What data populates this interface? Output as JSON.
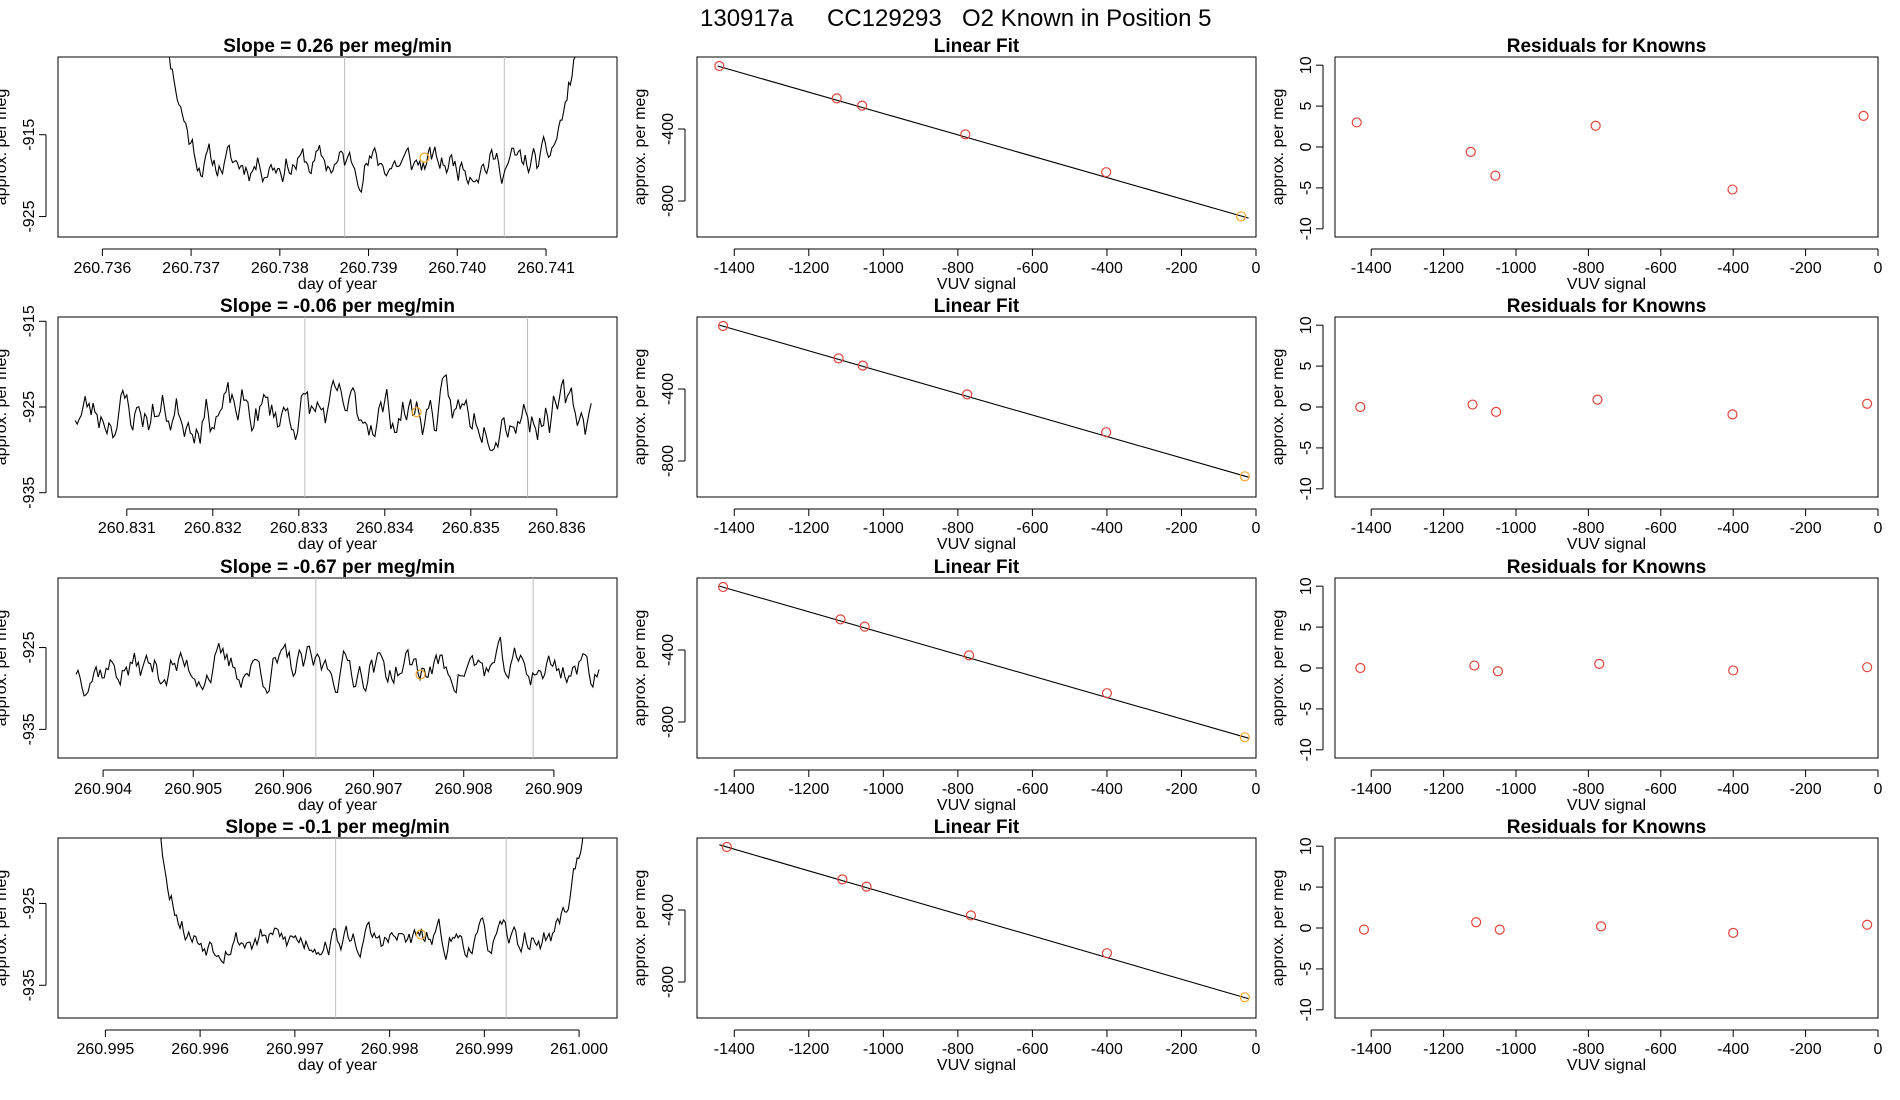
{
  "title_parts": [
    "130917a",
    "CC129293",
    "O2 Known in Position  5"
  ],
  "colors": {
    "point": "#e0453a",
    "highlight": "#f4a62a",
    "line": "#000000",
    "marker_lines": "#bdbdbd"
  },
  "chart_data": [
    {
      "type": "line",
      "panel": "timeseries",
      "row": 0,
      "title": "Slope =  0.26  per meg/min",
      "xlabel": "day of year",
      "ylabel": "approx. per meg",
      "xlim": [
        260.7355,
        260.7418
      ],
      "ylim": [
        -927.5,
        -905.5
      ],
      "xticks": [
        "260.736",
        "260.737",
        "260.738",
        "260.739",
        "260.740",
        "260.741"
      ],
      "yticks": [
        "-915",
        "-925"
      ],
      "vlines": [
        260.73873,
        260.74053
      ],
      "segment": [
        260.7366,
        260.7415
      ],
      "pattern": "ushape",
      "base": -918.5,
      "noise": 2.2,
      "seed": 11,
      "highlight": {
        "x": 260.73963,
        "y": -917.8
      }
    },
    {
      "type": "scatter",
      "panel": "linear_fit",
      "row": 0,
      "title": "Linear Fit",
      "xlabel": "VUV signal",
      "ylabel": "approx. per meg",
      "xlim": [
        -1500,
        0
      ],
      "ylim": [
        -1000,
        0
      ],
      "xticks": [
        -1400,
        -1200,
        -1000,
        -800,
        -600,
        -400,
        -200,
        0
      ],
      "yticks": [
        -400,
        -800
      ],
      "points": [
        [
          -1440,
          -50
        ],
        [
          -1125,
          -230
        ],
        [
          -1057,
          -270
        ],
        [
          -780,
          -430
        ],
        [
          -402,
          -640
        ],
        [
          -40,
          -885
        ]
      ],
      "fit_line": [
        [
          -1445,
          -50
        ],
        [
          -20,
          -895
        ]
      ],
      "highlight_index": 5
    },
    {
      "type": "scatter",
      "panel": "residuals",
      "row": 0,
      "title": "Residuals for Knowns",
      "xlabel": "VUV signal",
      "ylabel": "approx. per meg",
      "xlim": [
        -1500,
        0
      ],
      "ylim": [
        -11,
        11
      ],
      "xticks": [
        -1400,
        -1200,
        -1000,
        -800,
        -600,
        -400,
        -200,
        0
      ],
      "yticks": [
        10,
        5,
        0,
        -5,
        -10
      ],
      "points": [
        [
          -1440,
          3
        ],
        [
          -1125,
          -0.6
        ],
        [
          -1057,
          -3.5
        ],
        [
          -780,
          2.6
        ],
        [
          -402,
          -5.2
        ],
        [
          -40,
          3.8
        ]
      ]
    },
    {
      "type": "line",
      "panel": "timeseries",
      "row": 1,
      "title": "Slope =  -0.06  per meg/min",
      "xlabel": "day of year",
      "ylabel": "approx. per meg",
      "xlim": [
        260.8302,
        260.8367
      ],
      "ylim": [
        -935.5,
        -914.5
      ],
      "xticks": [
        "260.831",
        "260.832",
        "260.833",
        "260.834",
        "260.835",
        "260.836"
      ],
      "yticks": [
        "-915",
        "-925",
        "-935"
      ],
      "vlines": [
        260.83307,
        260.83566
      ],
      "segment": [
        260.8304,
        260.8364
      ],
      "pattern": "flat",
      "base": -925.6,
      "noise": 3.2,
      "seed": 23,
      "highlight": {
        "x": 260.83437,
        "y": -925.6
      }
    },
    {
      "type": "scatter",
      "panel": "linear_fit",
      "row": 1,
      "title": "Linear Fit",
      "xlabel": "VUV signal",
      "ylabel": "approx. per meg",
      "xlim": [
        -1500,
        0
      ],
      "ylim": [
        -1000,
        0
      ],
      "xticks": [
        -1400,
        -1200,
        -1000,
        -800,
        -600,
        -400,
        -200,
        0
      ],
      "yticks": [
        -400,
        -800
      ],
      "points": [
        [
          -1430,
          -50
        ],
        [
          -1120,
          -230
        ],
        [
          -1055,
          -270
        ],
        [
          -775,
          -430
        ],
        [
          -402,
          -640
        ],
        [
          -30,
          -885
        ]
      ],
      "fit_line": [
        [
          -1440,
          -45
        ],
        [
          -20,
          -890
        ]
      ],
      "highlight_index": 5
    },
    {
      "type": "scatter",
      "panel": "residuals",
      "row": 1,
      "title": "Residuals for Knowns",
      "xlabel": "VUV signal",
      "ylabel": "approx. per meg",
      "xlim": [
        -1500,
        0
      ],
      "ylim": [
        -11,
        11
      ],
      "xticks": [
        -1400,
        -1200,
        -1000,
        -800,
        -600,
        -400,
        -200,
        0
      ],
      "yticks": [
        10,
        5,
        0,
        -5,
        -10
      ],
      "points": [
        [
          -1430,
          0
        ],
        [
          -1120,
          0.3
        ],
        [
          -1055,
          -0.6
        ],
        [
          -775,
          0.9
        ],
        [
          -402,
          -0.9
        ],
        [
          -30,
          0.4
        ]
      ]
    },
    {
      "type": "line",
      "panel": "timeseries",
      "row": 2,
      "title": "Slope =  -0.67  per meg/min",
      "xlabel": "day of year",
      "ylabel": "approx. per meg",
      "xlim": [
        260.9035,
        260.9097
      ],
      "ylim": [
        -938.5,
        -916.5
      ],
      "xticks": [
        "260.904",
        "260.905",
        "260.906",
        "260.907",
        "260.908",
        "260.909"
      ],
      "yticks": [
        "-925",
        "-935"
      ],
      "vlines": [
        260.90636,
        260.90877
      ],
      "segment": [
        260.9037,
        260.9095
      ],
      "pattern": "flat",
      "base": -927.5,
      "noise": 2.6,
      "seed": 37,
      "highlight": {
        "x": 260.90752,
        "y": -928.3
      }
    },
    {
      "type": "scatter",
      "panel": "linear_fit",
      "row": 2,
      "title": "Linear Fit",
      "xlabel": "VUV signal",
      "ylabel": "approx. per meg",
      "xlim": [
        -1500,
        0
      ],
      "ylim": [
        -1000,
        0
      ],
      "xticks": [
        -1400,
        -1200,
        -1000,
        -800,
        -600,
        -400,
        -200,
        0
      ],
      "yticks": [
        -400,
        -800
      ],
      "points": [
        [
          -1430,
          -50
        ],
        [
          -1115,
          -230
        ],
        [
          -1050,
          -270
        ],
        [
          -770,
          -430
        ],
        [
          -400,
          -640
        ],
        [
          -30,
          -885
        ]
      ],
      "fit_line": [
        [
          -1440,
          -45
        ],
        [
          -20,
          -890
        ]
      ],
      "highlight_index": 5
    },
    {
      "type": "scatter",
      "panel": "residuals",
      "row": 2,
      "title": "Residuals for Knowns",
      "xlabel": "VUV signal",
      "ylabel": "approx. per meg",
      "xlim": [
        -1500,
        0
      ],
      "ylim": [
        -11,
        11
      ],
      "xticks": [
        -1400,
        -1200,
        -1000,
        -800,
        -600,
        -400,
        -200,
        0
      ],
      "yticks": [
        10,
        5,
        0,
        -5,
        -10
      ],
      "points": [
        [
          -1430,
          0
        ],
        [
          -1115,
          0.3
        ],
        [
          -1050,
          -0.4
        ],
        [
          -770,
          0.5
        ],
        [
          -400,
          -0.3
        ],
        [
          -30,
          0.1
        ]
      ]
    },
    {
      "type": "line",
      "panel": "timeseries",
      "row": 3,
      "title": "Slope =  -0.1  per meg/min",
      "xlabel": "day of year",
      "ylabel": "approx. per meg",
      "xlim": [
        260.9945,
        261.0004
      ],
      "ylim": [
        -939,
        -917
      ],
      "xticks": [
        "260.995",
        "260.996",
        "260.997",
        "260.998",
        "260.999",
        "261.000"
      ],
      "yticks": [
        "-925",
        "-935"
      ],
      "vlines": [
        260.99743,
        260.99923
      ],
      "segment": [
        260.9954,
        261.0002
      ],
      "pattern": "ushape",
      "base": -929.5,
      "noise": 2.0,
      "seed": 53,
      "highlight": {
        "x": 260.99833,
        "y": -928.8
      }
    },
    {
      "type": "scatter",
      "panel": "linear_fit",
      "row": 3,
      "title": "Linear Fit",
      "xlabel": "VUV signal",
      "ylabel": "approx. per meg",
      "xlim": [
        -1500,
        0
      ],
      "ylim": [
        -1000,
        0
      ],
      "xticks": [
        -1400,
        -1200,
        -1000,
        -800,
        -600,
        -400,
        -200,
        0
      ],
      "yticks": [
        -400,
        -800
      ],
      "points": [
        [
          -1420,
          -50
        ],
        [
          -1110,
          -230
        ],
        [
          -1045,
          -270
        ],
        [
          -765,
          -430
        ],
        [
          -400,
          -640
        ],
        [
          -30,
          -885
        ]
      ],
      "fit_line": [
        [
          -1440,
          -38
        ],
        [
          -20,
          -893
        ]
      ],
      "highlight_index": 5
    },
    {
      "type": "scatter",
      "panel": "residuals",
      "row": 3,
      "title": "Residuals for Knowns",
      "xlabel": "VUV signal",
      "ylabel": "approx. per meg",
      "xlim": [
        -1500,
        0
      ],
      "ylim": [
        -11,
        11
      ],
      "xticks": [
        -1400,
        -1200,
        -1000,
        -800,
        -600,
        -400,
        -200,
        0
      ],
      "yticks": [
        10,
        5,
        0,
        -5,
        -10
      ],
      "points": [
        [
          -1420,
          -0.2
        ],
        [
          -1110,
          0.7
        ],
        [
          -1045,
          -0.2
        ],
        [
          -765,
          0.2
        ],
        [
          -400,
          -0.6
        ],
        [
          -30,
          0.4
        ]
      ]
    }
  ]
}
